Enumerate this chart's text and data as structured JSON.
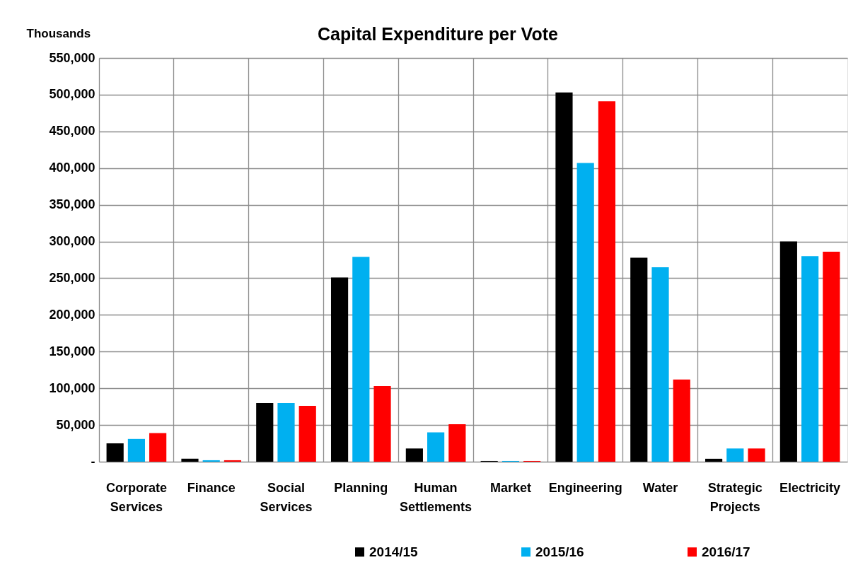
{
  "chart_data": {
    "type": "bar",
    "title": "Capital Expenditure per Vote",
    "ylabel": "Thousands",
    "categories": [
      "Corporate Services",
      "Finance",
      "Social Services",
      "Planning",
      "Human Settlements",
      "Market",
      "Engineering",
      "Water",
      "Strategic Projects",
      "Electricity"
    ],
    "series": [
      {
        "name": "2014/15",
        "color": "#000000",
        "values": [
          25000,
          4000,
          80000,
          251000,
          18000,
          1000,
          503000,
          278000,
          4000,
          300000
        ]
      },
      {
        "name": "2015/16",
        "color": "#00b0f0",
        "values": [
          31000,
          2000,
          80000,
          279000,
          40000,
          1000,
          407000,
          265000,
          18000,
          280000
        ]
      },
      {
        "name": "2016/17",
        "color": "#ff0000",
        "values": [
          39000,
          2000,
          76000,
          103000,
          51000,
          1000,
          491000,
          112000,
          18000,
          286000
        ]
      }
    ],
    "ylim": [
      0,
      550000
    ],
    "yticks": [
      {
        "value": 0,
        "label": "-"
      },
      {
        "value": 50000,
        "label": "50,000"
      },
      {
        "value": 100000,
        "label": "100,000"
      },
      {
        "value": 150000,
        "label": "150,000"
      },
      {
        "value": 200000,
        "label": "200,000"
      },
      {
        "value": 250000,
        "label": "250,000"
      },
      {
        "value": 300000,
        "label": "300,000"
      },
      {
        "value": 350000,
        "label": "350,000"
      },
      {
        "value": 400000,
        "label": "400,000"
      },
      {
        "value": 450000,
        "label": "450,000"
      },
      {
        "value": 500000,
        "label": "500,000"
      },
      {
        "value": 550000,
        "label": "550,000"
      }
    ],
    "grid": true,
    "legend": "bottom"
  }
}
